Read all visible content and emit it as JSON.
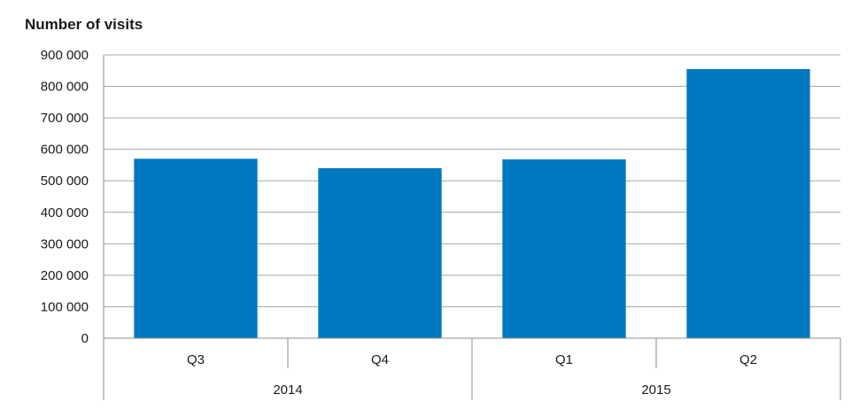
{
  "chart_data": {
    "type": "bar",
    "title": "Number of visits",
    "xlabel": "",
    "ylabel": "",
    "categories": [
      "Q3",
      "Q4",
      "Q1",
      "Q2"
    ],
    "groups": [
      {
        "label": "2014",
        "categories": [
          "Q3",
          "Q4"
        ]
      },
      {
        "label": "2015",
        "categories": [
          "Q1",
          "Q2"
        ]
      }
    ],
    "values": [
      570000,
      540000,
      568000,
      855000
    ],
    "ylim": [
      0,
      900000
    ],
    "yticks": [
      "0",
      "100 000",
      "200 000",
      "300 000",
      "400 000",
      "500 000",
      "600 000",
      "700 000",
      "800 000",
      "900 000"
    ],
    "grid": true,
    "legend": "none",
    "bar_color": "#0079c1"
  }
}
